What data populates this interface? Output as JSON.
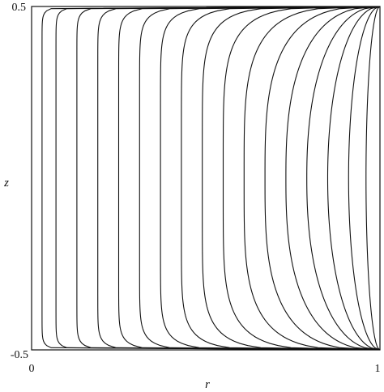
{
  "chart_data": {
    "type": "line",
    "title": "",
    "xlabel": "r",
    "ylabel": "z",
    "xlim": [
      0,
      1
    ],
    "ylim": [
      -0.5,
      0.5
    ],
    "x_ticks": [
      "0",
      "1"
    ],
    "y_ticks": [
      "-0.5",
      "0.5"
    ],
    "grid": false,
    "legend": "none",
    "line_color": "#111111",
    "background_color": "#ffffff",
    "series_note": "Family of contour curves, each starting at the bottom-right corner (1, -0.5) and ending at the top-right corner (1, 0.5); listed by the r value at mid-height z = 0.",
    "series": [
      {
        "r_at_z0": 0.03
      },
      {
        "r_at_z0": 0.07
      },
      {
        "r_at_z0": 0.13
      },
      {
        "r_at_z0": 0.19
      },
      {
        "r_at_z0": 0.25
      },
      {
        "r_at_z0": 0.31
      },
      {
        "r_at_z0": 0.37
      },
      {
        "r_at_z0": 0.43
      },
      {
        "r_at_z0": 0.49
      },
      {
        "r_at_z0": 0.55
      },
      {
        "r_at_z0": 0.61
      },
      {
        "r_at_z0": 0.67
      },
      {
        "r_at_z0": 0.73
      },
      {
        "r_at_z0": 0.79
      },
      {
        "r_at_z0": 0.85
      },
      {
        "r_at_z0": 0.91
      },
      {
        "r_at_z0": 0.96
      }
    ]
  }
}
